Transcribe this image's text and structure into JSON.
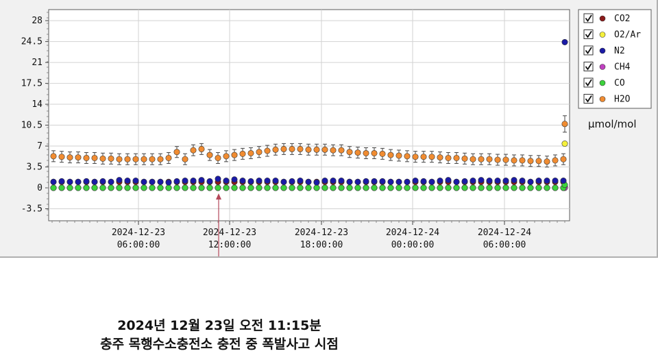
{
  "chart_data": {
    "type": "scatter",
    "x_axis": {
      "type": "datetime",
      "tick_labels": [
        [
          "2024-12-23",
          "06:00:00"
        ],
        [
          "2024-12-23",
          "12:00:00"
        ],
        [
          "2024-12-23",
          "18:00:00"
        ],
        [
          "2024-12-24",
          "00:00:00"
        ],
        [
          "2024-12-24",
          "06:00:00"
        ]
      ]
    },
    "y_axis": {
      "ticks": [
        "28",
        "24.5",
        "21",
        "17.5",
        "14",
        "10.5",
        "7",
        "3.5",
        "0",
        "-3.5"
      ],
      "range": [
        -5,
        30
      ]
    },
    "grid": true,
    "legend_position": "right",
    "unit_label": "μmol/mol",
    "series": [
      {
        "name": "CO2",
        "color": "#8b1a1a",
        "values": [
          1.0,
          1.0,
          1.0,
          1.0,
          1.0,
          1.0,
          1.0,
          1.0,
          1.0,
          1.0,
          1.0,
          1.0,
          1.0,
          1.0,
          1.0,
          1.0,
          1.0,
          1.0,
          1.0,
          1.0,
          1.0,
          1.0,
          1.0,
          1.0,
          1.0,
          1.0,
          1.0,
          1.0,
          1.0,
          1.0,
          1.0,
          1.0,
          1.0,
          1.0,
          1.0,
          1.0,
          1.0,
          1.0,
          1.0,
          1.0,
          1.0,
          1.0,
          1.0,
          1.0,
          1.0,
          1.0,
          1.0,
          1.0,
          1.0,
          1.0,
          1.0,
          1.0,
          1.0,
          1.0,
          1.0,
          1.0,
          1.0,
          1.0,
          1.0,
          1.0,
          1.0,
          1.0,
          1.0,
          0.2
        ]
      },
      {
        "name": "O2/Ar",
        "color": "#f5f03c",
        "values": [
          0.0,
          0.0,
          0.0,
          0.0,
          0.0,
          0.0,
          0.0,
          0.0,
          0.0,
          0.0,
          0.0,
          0.0,
          0.0,
          0.0,
          0.0,
          0.0,
          0.0,
          0.0,
          0.0,
          0.0,
          0.0,
          0.0,
          0.0,
          0.0,
          0.0,
          0.0,
          0.0,
          0.0,
          0.0,
          0.0,
          0.0,
          0.0,
          0.0,
          0.0,
          0.0,
          0.0,
          0.0,
          0.0,
          0.0,
          0.0,
          0.0,
          0.0,
          0.0,
          0.0,
          0.0,
          0.0,
          0.0,
          0.0,
          0.0,
          0.0,
          0.0,
          0.0,
          0.0,
          0.0,
          0.0,
          0.0,
          0.0,
          0.0,
          0.0,
          0.0,
          0.0,
          0.0,
          0.0,
          7.4
        ]
      },
      {
        "name": "N2",
        "color": "#1a1aa6",
        "values": [
          1.0,
          1.1,
          1.0,
          1.0,
          1.1,
          1.0,
          1.1,
          1.0,
          1.3,
          1.2,
          1.2,
          1.0,
          1.0,
          1.0,
          0.9,
          1.1,
          1.2,
          1.2,
          1.3,
          1.1,
          1.5,
          1.2,
          1.4,
          1.2,
          1.1,
          1.2,
          1.2,
          1.2,
          1.0,
          1.1,
          1.2,
          1.0,
          0.9,
          1.2,
          1.2,
          1.2,
          1.0,
          1.0,
          1.1,
          1.1,
          1.1,
          1.0,
          1.0,
          1.0,
          1.2,
          1.1,
          1.0,
          1.2,
          1.3,
          1.0,
          1.1,
          1.2,
          1.3,
          1.2,
          1.2,
          1.2,
          1.3,
          1.2,
          1.0,
          1.2,
          1.2,
          1.2,
          1.2,
          24.4
        ]
      },
      {
        "name": "CH4",
        "color": "#c040c0",
        "values": [
          0.0,
          0.0,
          0.0,
          0.0,
          0.0,
          0.0,
          0.0,
          0.0,
          0.0,
          0.0,
          0.0,
          0.0,
          0.0,
          0.0,
          0.0,
          0.0,
          0.0,
          0.0,
          0.0,
          0.0,
          0.0,
          0.0,
          0.0,
          0.0,
          0.0,
          0.0,
          0.0,
          0.0,
          0.0,
          0.0,
          0.0,
          0.0,
          0.0,
          0.0,
          0.0,
          0.0,
          0.0,
          0.0,
          0.0,
          0.0,
          0.0,
          0.0,
          0.0,
          0.0,
          0.0,
          0.0,
          0.0,
          0.0,
          0.0,
          0.0,
          0.0,
          0.0,
          0.0,
          0.0,
          0.0,
          0.0,
          0.0,
          0.0,
          0.0,
          0.0,
          0.0,
          0.0,
          0.0,
          0.0
        ]
      },
      {
        "name": "CO",
        "color": "#3cd23c",
        "values": [
          0.0,
          0.0,
          0.0,
          0.0,
          0.0,
          0.0,
          0.0,
          0.0,
          0.0,
          0.0,
          0.0,
          0.0,
          0.0,
          0.0,
          0.0,
          0.0,
          0.0,
          0.0,
          0.0,
          0.0,
          0.0,
          0.0,
          0.0,
          0.0,
          0.0,
          0.0,
          0.0,
          0.0,
          0.0,
          0.0,
          0.0,
          0.0,
          0.0,
          0.0,
          0.0,
          0.0,
          0.0,
          0.0,
          0.0,
          0.0,
          0.0,
          0.0,
          0.0,
          0.0,
          0.0,
          0.0,
          0.0,
          0.0,
          0.0,
          0.0,
          0.0,
          0.0,
          0.0,
          0.0,
          0.0,
          0.0,
          0.0,
          0.0,
          0.0,
          0.0,
          0.0,
          0.0,
          0.0,
          0.5
        ]
      },
      {
        "name": "H2O",
        "color": "#f08c32",
        "values": [
          5.3,
          5.2,
          5.1,
          5.1,
          5.0,
          5.0,
          4.9,
          4.9,
          4.8,
          4.8,
          4.8,
          4.8,
          4.8,
          4.8,
          5.0,
          6.0,
          4.8,
          6.3,
          6.5,
          5.5,
          5.0,
          5.3,
          5.5,
          5.7,
          5.8,
          6.0,
          6.2,
          6.4,
          6.5,
          6.5,
          6.5,
          6.4,
          6.4,
          6.4,
          6.3,
          6.3,
          6.0,
          5.9,
          5.8,
          5.8,
          5.7,
          5.5,
          5.4,
          5.3,
          5.2,
          5.2,
          5.2,
          5.1,
          5.0,
          5.0,
          4.9,
          4.8,
          4.8,
          4.8,
          4.7,
          4.7,
          4.6,
          4.6,
          4.5,
          4.5,
          4.4,
          4.6,
          4.8,
          10.7
        ]
      }
    ],
    "error_bar_series": "H2O"
  },
  "legend": {
    "items": [
      {
        "label": "CO2",
        "color": "#8b1a1a",
        "checked": true
      },
      {
        "label": "O2/Ar",
        "color": "#f5f03c",
        "checked": true
      },
      {
        "label": "N2",
        "color": "#1a1aa6",
        "checked": true
      },
      {
        "label": "CH4",
        "color": "#c040c0",
        "checked": true
      },
      {
        "label": "CO",
        "color": "#3cd23c",
        "checked": true
      },
      {
        "label": "H2O",
        "color": "#f08c32",
        "checked": true
      }
    ]
  },
  "annotation": {
    "line1": "2024년 12월 23일 오전 11:15분",
    "line2": "충주 목행수소충전소 충전 중 폭발사고 시점",
    "color": "#b5485a"
  }
}
